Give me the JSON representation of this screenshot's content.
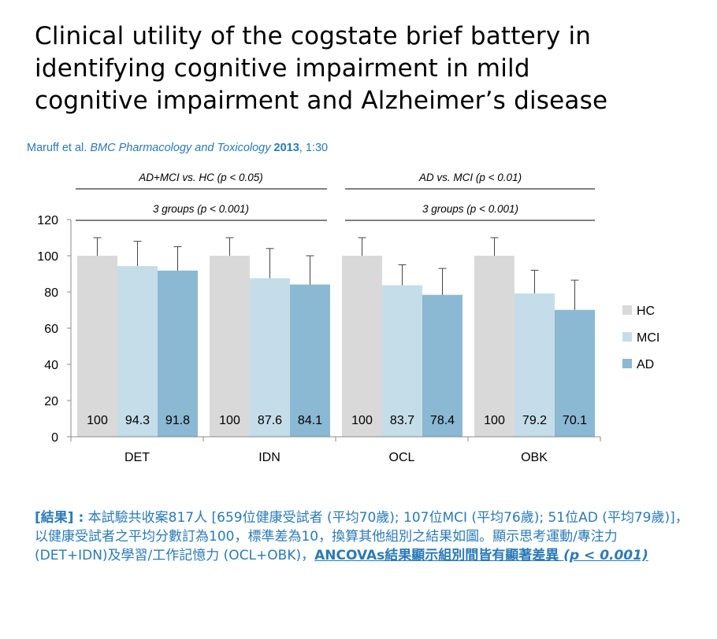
{
  "title_lines": [
    "Clinical utility of the cogstate brief battery in",
    "identifying cognitive impairment in mild",
    "cognitive impairment and Alzheimer’s disease"
  ],
  "citation": {
    "authors": "Maruff et al.",
    "journal": "BMC Pharmacology and Toxicology",
    "year": "2013",
    "rest": ", 1:30"
  },
  "comparisons": [
    {
      "label": "AD+MCI vs. HC (p < 0.05)",
      "groups": [
        "DET",
        "IDN"
      ]
    },
    {
      "label": "AD vs. MCI (p < 0.01)",
      "groups": [
        "OCL",
        "OBK"
      ]
    },
    {
      "label": "3 groups (p < 0.001)",
      "groups": [
        "DET",
        "IDN"
      ]
    },
    {
      "label": "3 groups (p < 0.001)",
      "groups": [
        "OCL",
        "OBK"
      ]
    }
  ],
  "chart_data": {
    "type": "bar",
    "categories": [
      "DET",
      "IDN",
      "OCL",
      "OBK"
    ],
    "series": [
      {
        "name": "HC",
        "color": "#d9d9d9",
        "values": [
          100,
          100,
          100,
          100
        ],
        "error_upper": [
          110,
          110,
          110,
          110
        ]
      },
      {
        "name": "MCI",
        "color": "#c5dde9",
        "values": [
          94.3,
          87.6,
          83.7,
          79.2
        ],
        "error_upper": [
          108,
          104,
          95,
          92
        ]
      },
      {
        "name": "AD",
        "color": "#8bb8d2",
        "values": [
          91.8,
          84.1,
          78.4,
          70.1
        ],
        "error_upper": [
          105,
          100,
          93,
          86.5
        ]
      }
    ],
    "data_labels": [
      [
        "100",
        "100",
        "100",
        "100"
      ],
      [
        "94.3",
        "87.6",
        "83.7",
        "79.2"
      ],
      [
        "91.8",
        "84.1",
        "78.4",
        "70.1"
      ]
    ],
    "ylim": [
      0,
      120
    ],
    "yticks": [
      "0",
      "20",
      "40",
      "60",
      "80",
      "100",
      "120"
    ],
    "grid": false,
    "legend_position": "right"
  },
  "summary": {
    "label": "[結果] :",
    "body": " 本試驗共收案817人 [659位健康受試者 (平均70歲); 107位MCI (平均76歲); 51位AD (平均79歲)]，以健康受試者之平均分數訂為100，標準差為10，換算其他組別之結果如圖。顯示思考運動/專注力 (DET+IDN)及學習/工作記憶力 (OCL+OBK)，",
    "emphasis": "ANCOVAs結果顯示組別間皆有顯著差異 ",
    "p_value": "(p < 0.001)"
  }
}
